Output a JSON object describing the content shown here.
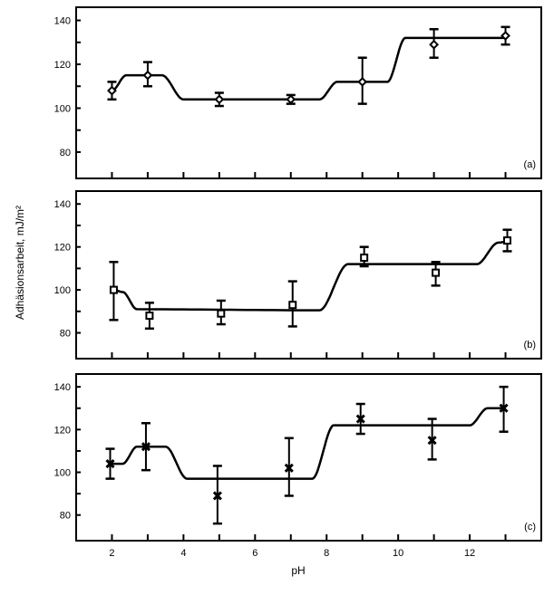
{
  "chart_data": {
    "type": "line",
    "ylabel": "Adhäsionsarbeit,   mJ/m²",
    "xlabel": "pH",
    "xlim": [
      1,
      14
    ],
    "x_ticks": [
      2,
      3,
      4,
      5,
      6,
      7,
      8,
      9,
      10,
      11,
      12,
      13
    ],
    "x_tick_labels": [
      "2",
      "4",
      "6",
      "8",
      "10",
      "12"
    ],
    "x_tick_label_values": [
      2,
      4,
      6,
      8,
      10,
      12
    ],
    "ylim": [
      68,
      146
    ],
    "y_ticks": [
      80,
      90,
      100,
      110,
      120,
      130,
      140
    ],
    "y_tick_labels": [
      "80",
      "100",
      "120",
      "140"
    ],
    "y_tick_label_values": [
      80,
      100,
      120,
      140
    ],
    "panels": [
      {
        "label": "(a)",
        "marker": "diamond",
        "points": [
          {
            "x": 2,
            "y": 108,
            "lo": 104,
            "hi": 112
          },
          {
            "x": 3,
            "y": 115,
            "lo": 110,
            "hi": 121
          },
          {
            "x": 5,
            "y": 104,
            "lo": 101,
            "hi": 107
          },
          {
            "x": 7,
            "y": 104,
            "lo": 102,
            "hi": 106
          },
          {
            "x": 9,
            "y": 112,
            "lo": 102,
            "hi": 123
          },
          {
            "x": 11,
            "y": 129,
            "lo": 123,
            "hi": 136
          },
          {
            "x": 13,
            "y": 133,
            "lo": 129,
            "hi": 137
          }
        ],
        "curve": [
          [
            2,
            108
          ],
          [
            2.4,
            115
          ],
          [
            3.4,
            115
          ],
          [
            4.0,
            104
          ],
          [
            7.8,
            104
          ],
          [
            8.3,
            112
          ],
          [
            9.7,
            112
          ],
          [
            10.2,
            132
          ],
          [
            13,
            132
          ]
        ]
      },
      {
        "label": "(b)",
        "marker": "square",
        "points": [
          {
            "x": 2.05,
            "y": 100,
            "lo": 86,
            "hi": 113
          },
          {
            "x": 3.05,
            "y": 88,
            "lo": 82,
            "hi": 94
          },
          {
            "x": 5.05,
            "y": 89,
            "lo": 84,
            "hi": 95
          },
          {
            "x": 7.05,
            "y": 93,
            "lo": 83,
            "hi": 104
          },
          {
            "x": 9.05,
            "y": 115,
            "lo": 111,
            "hi": 120
          },
          {
            "x": 11.05,
            "y": 108,
            "lo": 102,
            "hi": 113
          },
          {
            "x": 13.05,
            "y": 123,
            "lo": 118,
            "hi": 128
          }
        ],
        "curve": [
          [
            2.05,
            100
          ],
          [
            2.3,
            99
          ],
          [
            2.7,
            91
          ],
          [
            7.8,
            90.5
          ],
          [
            8.6,
            112
          ],
          [
            12.2,
            112
          ],
          [
            12.8,
            122
          ],
          [
            13.05,
            122.5
          ]
        ]
      },
      {
        "label": "(c)",
        "marker": "x",
        "points": [
          {
            "x": 1.95,
            "y": 104,
            "lo": 97,
            "hi": 111
          },
          {
            "x": 2.95,
            "y": 112,
            "lo": 101,
            "hi": 123
          },
          {
            "x": 4.95,
            "y": 89,
            "lo": 76,
            "hi": 103
          },
          {
            "x": 6.95,
            "y": 102,
            "lo": 89,
            "hi": 116
          },
          {
            "x": 8.95,
            "y": 125,
            "lo": 118,
            "hi": 132
          },
          {
            "x": 10.95,
            "y": 115,
            "lo": 106,
            "hi": 125
          },
          {
            "x": 12.95,
            "y": 130,
            "lo": 119,
            "hi": 140
          }
        ],
        "curve": [
          [
            1.95,
            104
          ],
          [
            2.3,
            104
          ],
          [
            2.7,
            112
          ],
          [
            3.5,
            112
          ],
          [
            4.1,
            97
          ],
          [
            7.6,
            97
          ],
          [
            8.2,
            122
          ],
          [
            12.0,
            122
          ],
          [
            12.5,
            130
          ],
          [
            12.95,
            130
          ]
        ]
      }
    ]
  }
}
